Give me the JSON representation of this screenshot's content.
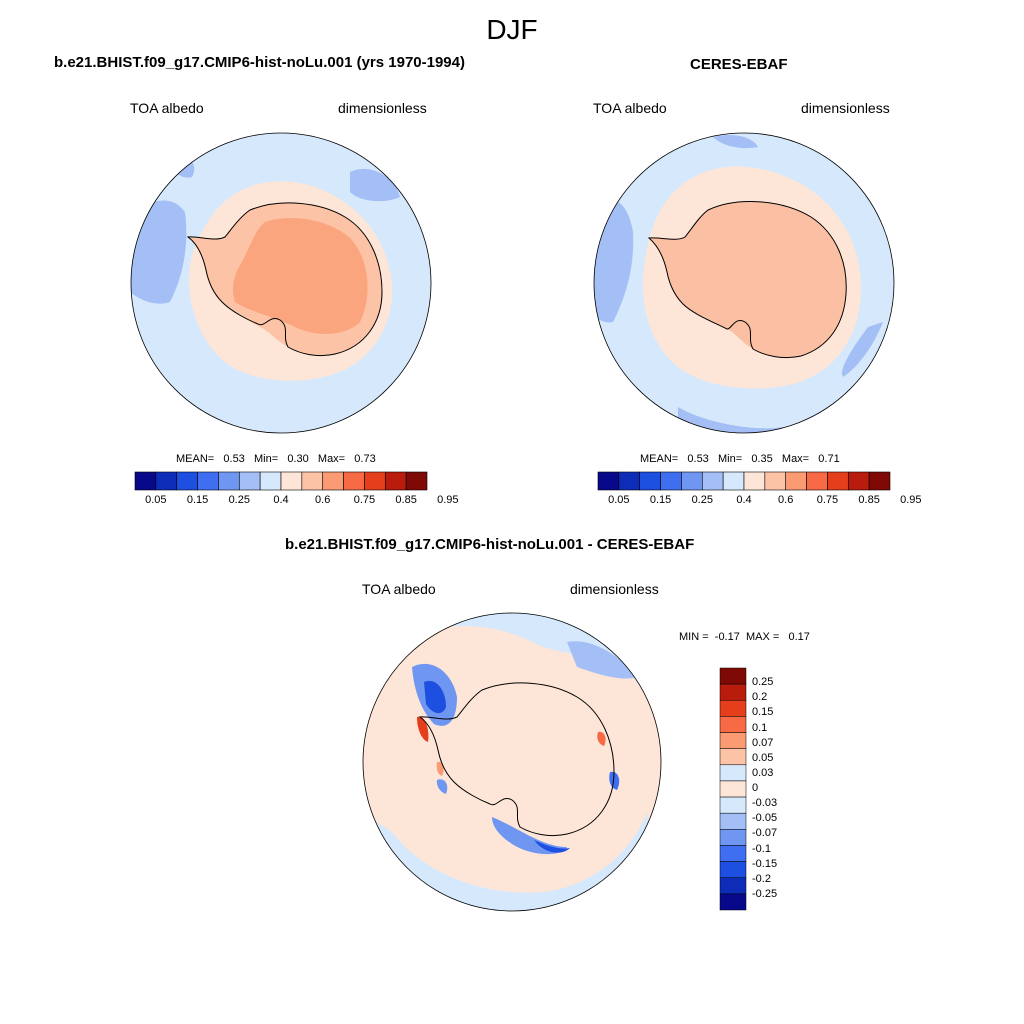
{
  "figure": {
    "title": "DJF",
    "palette_abs": [
      "#08088a",
      "#0d2db8",
      "#1d4fe0",
      "#3f6ff0",
      "#6f97f2",
      "#a3bff5",
      "#d6e8fb",
      "#fde6d8",
      "#fcc3a6",
      "#fb9b73",
      "#f76a45",
      "#e53e1c",
      "#b91b0d",
      "#7f0a05"
    ],
    "palette_diff": [
      "#08088a",
      "#0d2db8",
      "#1d4fe0",
      "#3f6ff0",
      "#6f97f2",
      "#a3bff5",
      "#d6e8fb",
      "#fde6d8",
      "#fcc3a6",
      "#fb9b73",
      "#f76a45",
      "#e53e1c",
      "#b91b0d",
      "#7f0a05"
    ],
    "colors": {
      "ocean": "#d6e8fb",
      "ice_edge": "#fde6d8",
      "antarctica_model": "#fba57f",
      "antarctica_obs": "#fbc0a3",
      "coast": "#000000"
    }
  },
  "panels": [
    {
      "title": "b.e21.BHIST.f09_g17.CMIP6-hist-noLu.001 (yrs 1970-1994)",
      "variable": "TOA albedo",
      "units": "dimensionless",
      "stats": {
        "mean_label": "MEAN=",
        "mean": "0.53",
        "min_label": "Min=",
        "min": "0.30",
        "max_label": "Max=",
        "max": "0.73"
      },
      "colorbar": {
        "labels": [
          "0.05",
          "0.15",
          "0.25",
          "0.4",
          "0.6",
          "0.75",
          "0.85",
          "0.95"
        ]
      }
    },
    {
      "title": "CERES-EBAF",
      "variable": "TOA albedo",
      "units": "dimensionless",
      "stats": {
        "mean_label": "MEAN=",
        "mean": "0.53",
        "min_label": "Min=",
        "min": "0.35",
        "max_label": "Max=",
        "max": "0.71"
      },
      "colorbar": {
        "labels": [
          "0.05",
          "0.15",
          "0.25",
          "0.4",
          "0.6",
          "0.75",
          "0.85",
          "0.95"
        ]
      }
    },
    {
      "title": "b.e21.BHIST.f09_g17.CMIP6-hist-noLu.001 - CERES-EBAF",
      "variable": "TOA albedo",
      "units": "dimensionless",
      "stats": {
        "min_label": "MIN =",
        "min": "-0.17",
        "max_label": "MAX =",
        "max": "0.17"
      },
      "colorbar": {
        "labels": [
          "0.25",
          "0.2",
          "0.15",
          "0.1",
          "0.07",
          "0.05",
          "0.03",
          "0",
          "-0.03",
          "-0.05",
          "-0.07",
          "-0.1",
          "-0.15",
          "-0.2",
          "-0.25"
        ]
      }
    }
  ]
}
